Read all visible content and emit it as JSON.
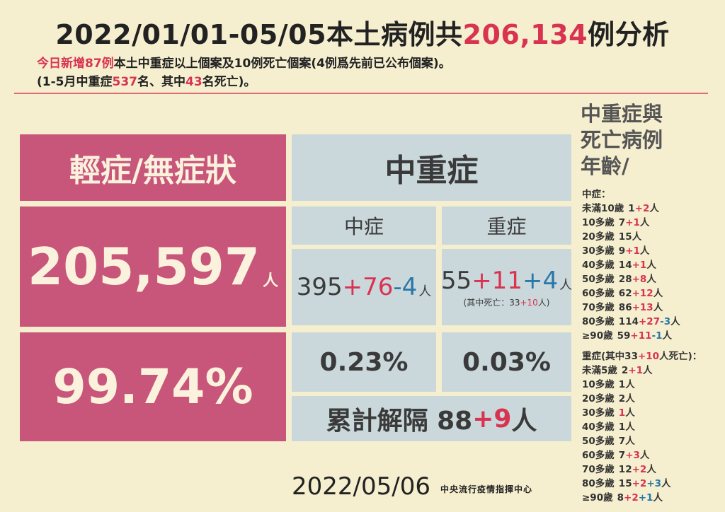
{
  "title": {
    "pre": "2022/01/01-05/05本土病例共",
    "total": "206,134",
    "post": "例分析"
  },
  "sub1": {
    "a": "今日新增87例",
    "b": "本土中重症以上個案及10例死亡個案(4例爲先前已公布個案)。"
  },
  "sub2": {
    "a": "(1-5月中重症",
    "b": "537",
    "c": "名、其中",
    "d": "43",
    "e": "名死亡)。"
  },
  "mild": {
    "header": "輕症/無症狀",
    "count": "205,597",
    "unit": "人",
    "percent": "99.74%"
  },
  "severe_block": {
    "header": "中重症",
    "moderate": {
      "label": "中症",
      "base": "395",
      "add": "+76",
      "sub": "-4",
      "unit": "人",
      "percent": "0.23%"
    },
    "severe": {
      "label": "重症",
      "base": "55",
      "add": "+11",
      "plus": "+4",
      "unit": "人",
      "death_pre": "(其中死亡：33",
      "death_add": "+10",
      "death_post": "人)",
      "percent": "0.03%"
    },
    "isolation": {
      "label": "累計解隔 88",
      "add": "+9",
      "unit": "人"
    }
  },
  "side": {
    "header": [
      "中重症與",
      "死亡病例",
      "年齡/"
    ],
    "moderate_title": "中症：",
    "moderate_rows": [
      {
        "age": "未滿10歲",
        "v": "1",
        "r": "+2",
        "b": "",
        "u": "人"
      },
      {
        "age": "10多歲",
        "v": "7",
        "r": "+1",
        "b": "",
        "u": "人"
      },
      {
        "age": "20多歲",
        "v": "15",
        "r": "",
        "b": "",
        "u": "人"
      },
      {
        "age": "30多歲",
        "v": "9",
        "r": "+1",
        "b": "",
        "u": "人"
      },
      {
        "age": "40多歲",
        "v": "14",
        "r": "+1",
        "b": "",
        "u": "人"
      },
      {
        "age": "50多歲",
        "v": "28",
        "r": "+8",
        "b": "",
        "u": "人"
      },
      {
        "age": "60多歲",
        "v": "62",
        "r": "+12",
        "b": "",
        "u": "人"
      },
      {
        "age": "70多歲",
        "v": "86",
        "r": "+13",
        "b": "",
        "u": "人"
      },
      {
        "age": "80多歲",
        "v": "114",
        "r": "+27",
        "b": "-3",
        "u": "人"
      },
      {
        "age": "≥90歲",
        "v": "59",
        "r": "+11",
        "b": "-1",
        "u": "人"
      }
    ],
    "severe_title": {
      "pre": "重症(其中33",
      "add": "+10",
      "post": "人死亡)："
    },
    "severe_rows": [
      {
        "age": "未滿5歲",
        "v": "2",
        "r": "+1",
        "b": "",
        "u": "人"
      },
      {
        "age": "10多歲",
        "v": "1",
        "r": "",
        "b": "",
        "u": "人"
      },
      {
        "age": "20多歲",
        "v": "2",
        "r": "",
        "b": "",
        "u": "人"
      },
      {
        "age": "30多歲",
        "v": "",
        "r": "1",
        "b": "",
        "u": "人"
      },
      {
        "age": "40多歲",
        "v": "1",
        "r": "",
        "b": "",
        "u": "人"
      },
      {
        "age": "50多歲",
        "v": "7",
        "r": "",
        "b": "",
        "u": "人"
      },
      {
        "age": "60多歲",
        "v": "7",
        "r": "+3",
        "b": "",
        "u": "人"
      },
      {
        "age": "70多歲",
        "v": "12",
        "r": "+2",
        "b": "",
        "u": "人"
      },
      {
        "age": "80多歲",
        "v": "15",
        "r": "+2",
        "b": "+3",
        "u": "人"
      },
      {
        "age": "≥90歲",
        "v": "8",
        "r": "+2",
        "b": "+1",
        "u": "人"
      }
    ]
  },
  "footer": {
    "date": "2022/05/06",
    "org": "中央流行疫情指揮中心"
  }
}
